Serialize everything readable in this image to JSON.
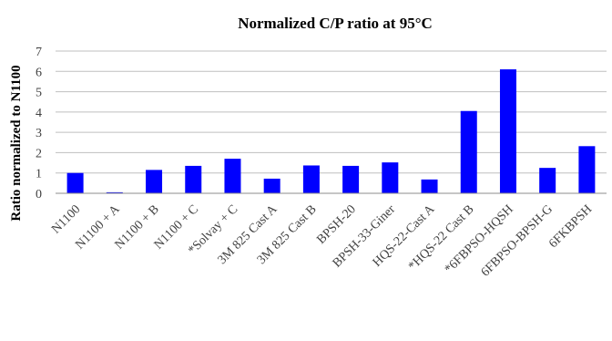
{
  "chart_data": {
    "type": "bar",
    "title": "Normalized C/P ratio at 95°C",
    "xlabel": "",
    "ylabel": "Ratio normalized to N1100",
    "ylim": [
      0,
      7
    ],
    "yticks": [
      0,
      1,
      2,
      3,
      4,
      5,
      6,
      7
    ],
    "grid": true,
    "legend": "none",
    "bar_color": "#0000ff",
    "categories": [
      "N1100",
      "N1100 + A",
      "N1100 + B",
      "N1100 + C",
      "*Solvay + C",
      "3M 825 Cast A",
      "3M 825 Cast B",
      "BPSH-20",
      "BPSH-33-Giner",
      "HQS-22-Cast A",
      "*HQS-22 Cast B",
      "*6FBPSO-HQSH",
      "6FBPSO-BPSH-G",
      "6FKBPSH"
    ],
    "values": [
      1.0,
      0.05,
      1.15,
      1.35,
      1.7,
      0.72,
      1.37,
      1.35,
      1.52,
      0.68,
      4.05,
      6.1,
      1.25,
      2.32
    ]
  }
}
